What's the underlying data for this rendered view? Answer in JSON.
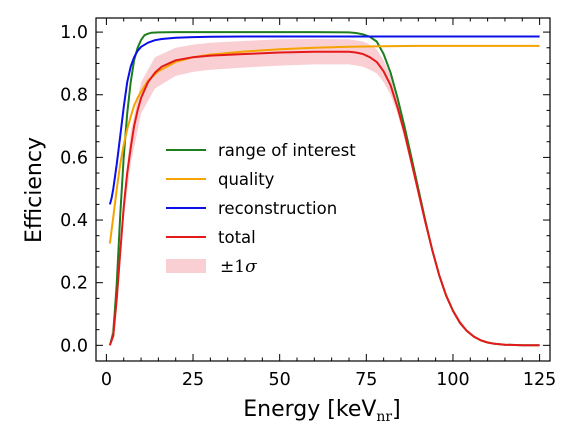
{
  "chart_data": {
    "type": "line",
    "xlabel": "Energy [keV",
    "xlabel_subscript": "nr",
    "xlabel_suffix": "]",
    "ylabel": "Efficiency",
    "xlim": [
      -3,
      128
    ],
    "ylim": [
      -0.05,
      1.045
    ],
    "xticks": [
      0,
      25,
      50,
      75,
      100,
      125
    ],
    "xtick_labels": [
      "0",
      "25",
      "50",
      "75",
      "100",
      "125"
    ],
    "yticks": [
      0.0,
      0.2,
      0.4,
      0.6,
      0.8,
      1.0
    ],
    "ytick_labels": [
      "0.0",
      "0.2",
      "0.4",
      "0.6",
      "0.8",
      "1.0"
    ],
    "grid": false,
    "legend_position": "center-left",
    "series": [
      {
        "name": "range of interest",
        "color": "#1e7d1e",
        "x": [
          1,
          2,
          3,
          4,
          5,
          6,
          7,
          8,
          9,
          10,
          11,
          12,
          13,
          15,
          20,
          30,
          40,
          50,
          60,
          70,
          72,
          74,
          76,
          78,
          80,
          82,
          84,
          86,
          88,
          90,
          92,
          94,
          96,
          98,
          100,
          102,
          104,
          106,
          108,
          110,
          112,
          115,
          120,
          125
        ],
        "y": [
          0.0,
          0.04,
          0.2,
          0.42,
          0.6,
          0.74,
          0.84,
          0.91,
          0.95,
          0.975,
          0.99,
          0.995,
          0.998,
          0.999,
          1.0,
          1.0,
          1.0,
          1.0,
          1.0,
          0.999,
          0.997,
          0.993,
          0.985,
          0.97,
          0.93,
          0.87,
          0.79,
          0.7,
          0.6,
          0.5,
          0.4,
          0.305,
          0.225,
          0.16,
          0.11,
          0.072,
          0.046,
          0.028,
          0.016,
          0.009,
          0.005,
          0.002,
          0.0005,
          0.0
        ]
      },
      {
        "name": "quality",
        "color": "#f5a300",
        "x": [
          1,
          2,
          3,
          4,
          5,
          6,
          7,
          8,
          9,
          10,
          12,
          15,
          20,
          25,
          30,
          40,
          50,
          60,
          70,
          80,
          90,
          100,
          110,
          125
        ],
        "y": [
          0.325,
          0.41,
          0.5,
          0.58,
          0.64,
          0.69,
          0.73,
          0.765,
          0.79,
          0.81,
          0.845,
          0.875,
          0.905,
          0.92,
          0.928,
          0.938,
          0.945,
          0.95,
          0.953,
          0.955,
          0.956,
          0.956,
          0.956,
          0.956
        ]
      },
      {
        "name": "reconstruction",
        "color": "#0a10e8",
        "x": [
          1,
          1.5,
          2,
          3,
          4,
          5,
          6,
          7,
          8,
          9,
          10,
          12,
          14,
          16,
          20,
          25,
          30,
          40,
          50,
          60,
          70,
          80,
          90,
          100,
          110,
          125
        ],
        "y": [
          0.45,
          0.47,
          0.5,
          0.58,
          0.67,
          0.76,
          0.84,
          0.89,
          0.92,
          0.94,
          0.953,
          0.966,
          0.974,
          0.978,
          0.982,
          0.984,
          0.985,
          0.986,
          0.986,
          0.986,
          0.986,
          0.986,
          0.986,
          0.986,
          0.986,
          0.986
        ]
      },
      {
        "name": "total",
        "color": "#e41a1a",
        "x": [
          1,
          2,
          3,
          4,
          5,
          6,
          7,
          8,
          9,
          10,
          12,
          14,
          16,
          20,
          25,
          30,
          40,
          50,
          60,
          70,
          72,
          74,
          76,
          78,
          80,
          82,
          84,
          86,
          88,
          90,
          92,
          94,
          96,
          98,
          100,
          102,
          104,
          106,
          108,
          110,
          112,
          115,
          120,
          125
        ],
        "y": [
          0.0,
          0.03,
          0.15,
          0.3,
          0.44,
          0.55,
          0.63,
          0.7,
          0.75,
          0.79,
          0.84,
          0.87,
          0.89,
          0.91,
          0.92,
          0.925,
          0.93,
          0.935,
          0.937,
          0.937,
          0.935,
          0.93,
          0.92,
          0.905,
          0.875,
          0.83,
          0.76,
          0.68,
          0.585,
          0.49,
          0.395,
          0.305,
          0.225,
          0.16,
          0.11,
          0.072,
          0.046,
          0.028,
          0.016,
          0.009,
          0.005,
          0.002,
          0.0005,
          0.0
        ]
      }
    ],
    "band": {
      "name": "±1σ",
      "name_prefix": "±1",
      "name_symbol": "σ",
      "color": "#f4a0a8",
      "opacity": 0.5,
      "x": [
        1,
        3,
        5,
        7,
        10,
        14,
        20,
        25,
        30,
        40,
        50,
        60,
        70,
        74,
        76,
        78,
        80,
        82,
        84,
        86,
        88,
        90,
        92,
        94,
        96,
        98,
        100,
        104,
        108,
        112,
        120,
        125
      ],
      "lower": [
        0.0,
        0.12,
        0.4,
        0.58,
        0.74,
        0.82,
        0.86,
        0.873,
        0.88,
        0.887,
        0.893,
        0.897,
        0.897,
        0.89,
        0.88,
        0.868,
        0.84,
        0.8,
        0.74,
        0.66,
        0.57,
        0.48,
        0.385,
        0.295,
        0.215,
        0.152,
        0.104,
        0.042,
        0.014,
        0.004,
        0.0003,
        0.0
      ],
      "upper": [
        0.0,
        0.18,
        0.48,
        0.68,
        0.84,
        0.92,
        0.95,
        0.96,
        0.966,
        0.972,
        0.977,
        0.978,
        0.977,
        0.97,
        0.96,
        0.945,
        0.91,
        0.86,
        0.78,
        0.7,
        0.6,
        0.5,
        0.405,
        0.315,
        0.235,
        0.168,
        0.116,
        0.05,
        0.018,
        0.006,
        0.0007,
        0.0
      ]
    }
  }
}
